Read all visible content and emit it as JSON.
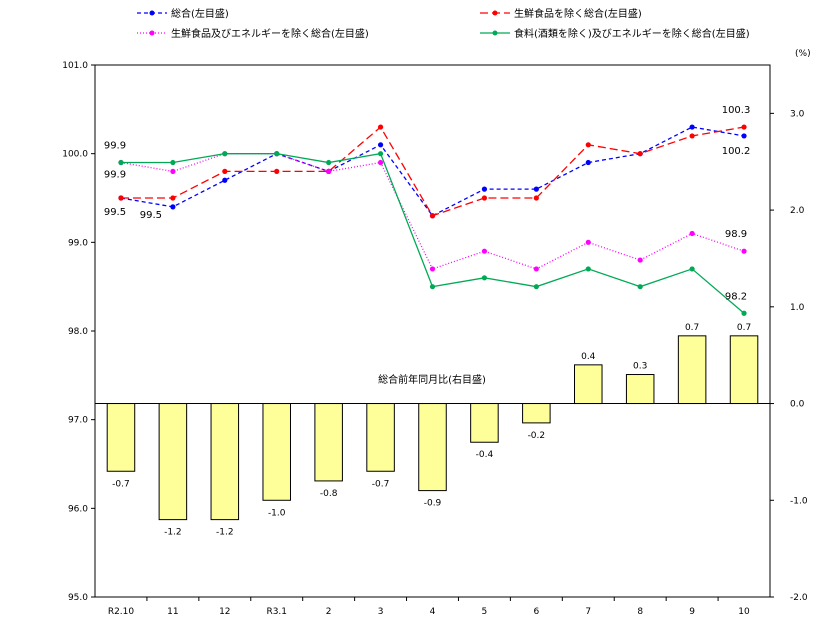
{
  "chart_data": {
    "type": "bar+line",
    "categories": [
      "R2.10",
      "11",
      "12",
      "R3.1",
      "2",
      "3",
      "4",
      "5",
      "6",
      "7",
      "8",
      "9",
      "10"
    ],
    "left_axis": {
      "ylim": [
        95.0,
        101.0
      ],
      "ticks": [
        "95.0",
        "96.0",
        "97.0",
        "98.0",
        "99.0",
        "100.0",
        "101.0"
      ]
    },
    "right_axis": {
      "unit": "(%)",
      "ylim": [
        -2.0,
        3.5
      ],
      "ticks": [
        "-2.0",
        "-1.0",
        "0.0",
        "1.0",
        "2.0",
        "3.0"
      ]
    },
    "bars": {
      "name": "総合前年同月比(右目盛)",
      "axis": "right",
      "values": [
        -0.7,
        -1.2,
        -1.2,
        -1.0,
        -0.8,
        -0.7,
        -0.9,
        -0.4,
        -0.2,
        0.4,
        0.3,
        0.7,
        0.7
      ],
      "labels": [
        "-0.7",
        "-1.2",
        "-1.2",
        "-1.0",
        "-0.8",
        "-0.7",
        "-0.9",
        "-0.4",
        "-0.2",
        "0.4",
        "0.3",
        "0.7",
        "0.7"
      ],
      "color": "#ffff99",
      "neg_label_color": "#ff0000",
      "pos_label_color": "#000000"
    },
    "series": [
      {
        "name": "総合(左目盛)",
        "axis": "left",
        "color": "#0000ff",
        "dash": "4,3",
        "values": [
          99.5,
          99.4,
          99.7,
          100.0,
          99.8,
          100.1,
          99.3,
          99.6,
          99.6,
          99.9,
          100.0,
          100.3,
          100.2
        ]
      },
      {
        "name": "生鮮食品を除く総合(左目盛)",
        "axis": "left",
        "color": "#ff0000",
        "dash": "8,4",
        "values": [
          99.5,
          99.5,
          99.8,
          99.8,
          99.8,
          100.3,
          99.3,
          99.5,
          99.5,
          100.1,
          100.0,
          100.2,
          100.3
        ]
      },
      {
        "name": "生鮮食品及びエネルギーを除く総合(左目盛)",
        "axis": "left",
        "color": "#ff00ff",
        "dash": "1,2",
        "values": [
          99.9,
          99.8,
          100.0,
          100.0,
          99.8,
          99.9,
          98.7,
          98.9,
          98.7,
          99.0,
          98.8,
          99.1,
          98.9
        ]
      },
      {
        "name": "食料(酒類を除く)及びエネルギーを除く総合(左目盛)",
        "axis": "left",
        "color": "#00aa55",
        "dash": "",
        "values": [
          99.9,
          99.9,
          100.0,
          100.0,
          99.9,
          100.0,
          98.5,
          98.6,
          98.5,
          98.7,
          98.5,
          98.7,
          98.2
        ]
      }
    ],
    "point_labels": [
      {
        "text": "99.9",
        "index": 0,
        "value": 99.9,
        "pos": "above"
      },
      {
        "text": "99.9",
        "index": 0,
        "value": 99.9,
        "pos": "below"
      },
      {
        "text": "99.5",
        "index": 0,
        "value": 99.5,
        "pos": "below"
      },
      {
        "text": "99.5",
        "index": 1,
        "value": 99.5,
        "pos": "below"
      },
      {
        "text": "100.3",
        "index": 12,
        "value": 100.3,
        "pos": "above"
      },
      {
        "text": "100.2",
        "index": 12,
        "value": 100.2,
        "pos": "below"
      },
      {
        "text": "98.9",
        "index": 12,
        "value": 98.9,
        "pos": "above"
      },
      {
        "text": "98.2",
        "index": 12,
        "value": 98.2,
        "pos": "above"
      }
    ],
    "legend": [
      {
        "label": "総合(左目盛)",
        "series": 0
      },
      {
        "label": "生鮮食品を除く総合(左目盛)",
        "series": 1
      },
      {
        "label": "生鮮食品及びエネルギーを除く総合(左目盛)",
        "series": 2
      },
      {
        "label": "食料(酒類を除く)及びエネルギーを除く総合(左目盛)",
        "series": 3
      }
    ],
    "legend_position": "top",
    "grid": false
  }
}
